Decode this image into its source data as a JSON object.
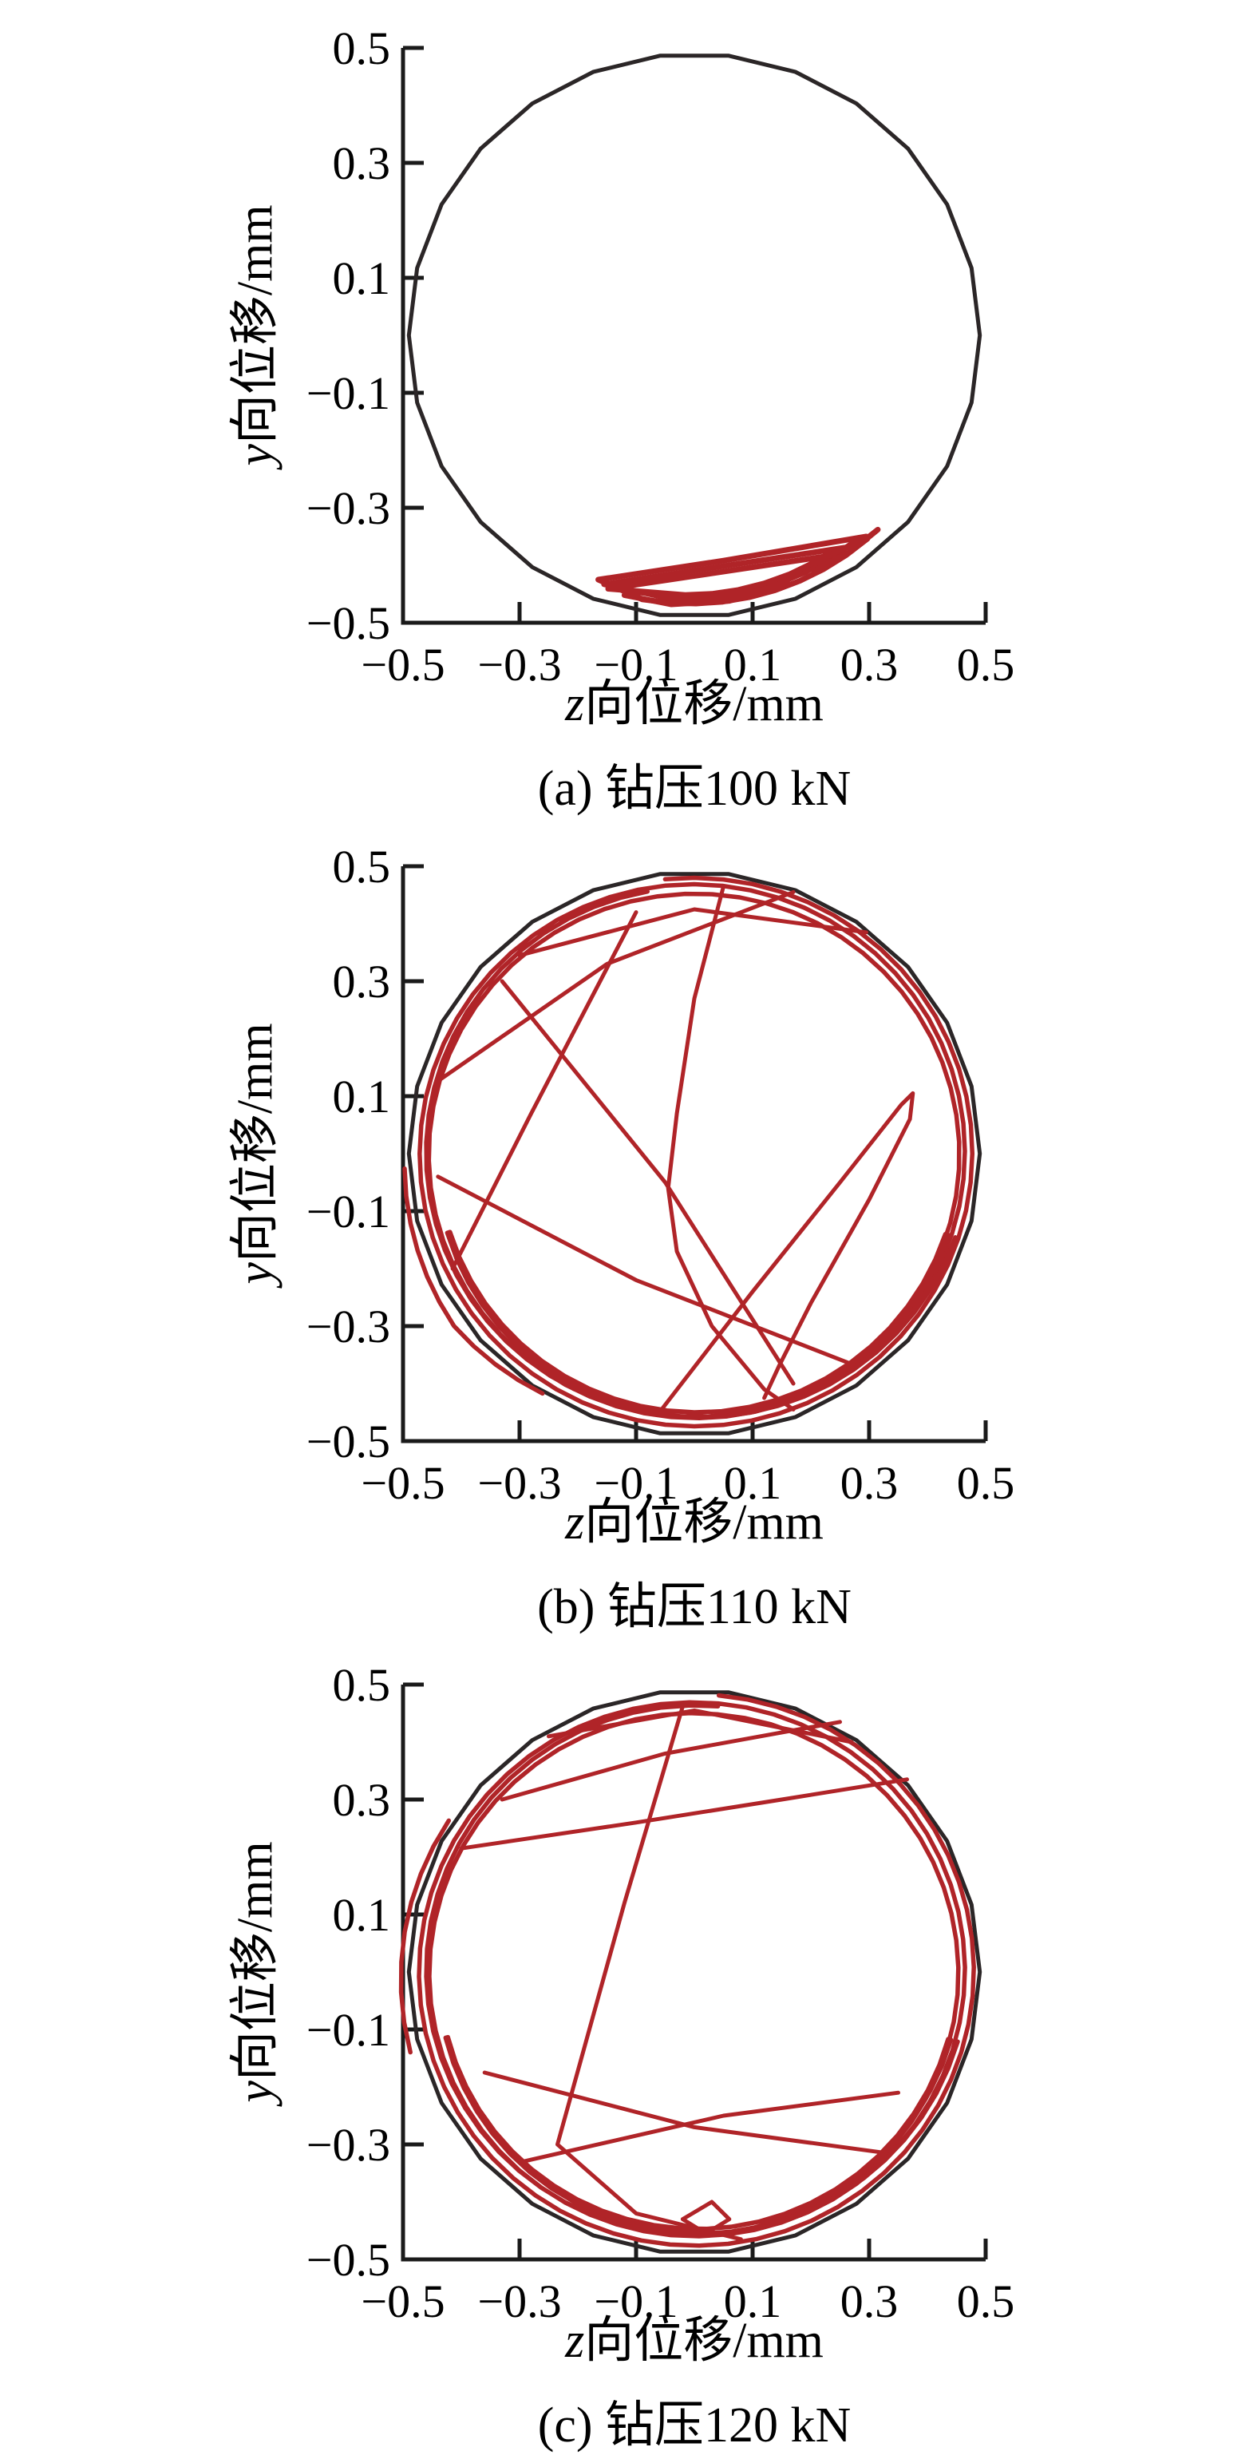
{
  "page": {
    "background": "#ffffff"
  },
  "colors": {
    "trajectory_red": "#b02428",
    "boundary_black": "#2b2627",
    "axis_black": "#1a1a1a",
    "text_black": "#000000"
  },
  "chart_data": [
    {
      "id": "a",
      "type": "line",
      "title": "(a) 钻压100 kN",
      "xlabel_var": "z",
      "xlabel_rest": "向位移/mm",
      "ylabel_var": "y",
      "ylabel_rest": "向位移/mm",
      "xlim": [
        -0.5,
        0.5
      ],
      "ylim": [
        -0.5,
        0.5
      ],
      "grid": false,
      "legend": "none",
      "xticks": {
        "values": [
          -0.5,
          -0.3,
          -0.1,
          0.1,
          0.3,
          0.5
        ],
        "labels": [
          "−0.5",
          "−0.3",
          "−0.1",
          "0.1",
          "0.3",
          "0.5"
        ]
      },
      "yticks": {
        "values": [
          -0.5,
          -0.3,
          -0.1,
          0.1,
          0.3,
          0.5
        ],
        "labels": [
          "−0.5",
          "−0.3",
          "−0.1",
          "0.1",
          "0.3",
          "0.5"
        ]
      },
      "boundary": {
        "shape": "circle",
        "cx": 0,
        "cy": 0,
        "r": 0.49,
        "sides": 26,
        "color": "#2b2627",
        "width": 5
      },
      "series": [
        {
          "name": "whirl-loop-outer",
          "color": "#b02428",
          "width": 7,
          "segments": [
            {
              "pts": [
                [
                  -0.165,
                  -0.425
                ],
                [
                  0.05,
                  -0.392
                ],
                [
                  0.295,
                  -0.35
                ]
              ]
            },
            {
              "arc": [
                -50,
                -101,
                0.462,
                0.468
              ]
            },
            {
              "pts": [
                [
                  -0.165,
                  -0.425
                ]
              ]
            }
          ]
        },
        {
          "name": "whirl-loop-mid",
          "color": "#b02428",
          "width": 7,
          "segments": [
            {
              "pts": [
                [
                  -0.155,
                  -0.433
                ],
                [
                  0.28,
                  -0.366
                ]
              ]
            },
            {
              "arc": [
                -53,
                -96,
                0.452,
                0.459
              ]
            },
            {
              "pts": [
                [
                  -0.155,
                  -0.433
                ]
              ]
            }
          ]
        },
        {
          "name": "whirl-loop-inner",
          "color": "#b02428",
          "width": 7,
          "segments": [
            {
              "pts": [
                [
                  -0.148,
                  -0.441
                ],
                [
                  0.255,
                  -0.38
                ]
              ]
            },
            {
              "arc": [
                -57,
                -92,
                0.444,
                0.452
              ]
            },
            {
              "pts": [
                [
                  -0.148,
                  -0.441
                ]
              ]
            }
          ]
        },
        {
          "name": "bottom-squiggle",
          "color": "#b02428",
          "width": 7,
          "segments": [
            {
              "pts": [
                [
                  -0.1,
                  -0.447
                ],
                [
                  0.02,
                  -0.457
                ],
                [
                  0.1,
                  -0.447
                ],
                [
                  0.16,
                  -0.432
                ],
                [
                  0.06,
                  -0.462
                ],
                [
                  -0.04,
                  -0.468
                ],
                [
                  -0.12,
                  -0.452
                ],
                [
                  -0.1,
                  -0.447
                ]
              ]
            }
          ]
        },
        {
          "name": "right-tip",
          "color": "#b02428",
          "width": 7,
          "segments": [
            {
              "pts": [
                [
                  0.2,
                  -0.398
                ],
                [
                  0.3,
                  -0.35
                ],
                [
                  0.315,
                  -0.338
                ],
                [
                  0.27,
                  -0.375
                ],
                [
                  0.205,
                  -0.41
                ]
              ]
            }
          ]
        }
      ]
    },
    {
      "id": "b",
      "type": "line",
      "title": "(b) 钻压110 kN",
      "xlabel_var": "z",
      "xlabel_rest": "向位移/mm",
      "ylabel_var": "y",
      "ylabel_rest": "向位移/mm",
      "xlim": [
        -0.5,
        0.5
      ],
      "ylim": [
        -0.5,
        0.5
      ],
      "grid": false,
      "legend": "none",
      "xticks": {
        "values": [
          -0.5,
          -0.3,
          -0.1,
          0.1,
          0.3,
          0.5
        ],
        "labels": [
          "−0.5",
          "−0.3",
          "−0.1",
          "0.1",
          "0.3",
          "0.5"
        ]
      },
      "yticks": {
        "values": [
          -0.5,
          -0.3,
          -0.1,
          0.1,
          0.3,
          0.5
        ],
        "labels": [
          "−0.5",
          "−0.3",
          "−0.1",
          "0.1",
          "0.3",
          "0.5"
        ]
      },
      "boundary": {
        "shape": "circle",
        "cx": 0,
        "cy": 0,
        "r": 0.49,
        "sides": 26,
        "color": "#2b2627",
        "width": 5
      },
      "series": [
        {
          "name": "whirl-orbit",
          "color": "#b02428",
          "width": 5.5,
          "segments": [
            {
              "arc": [
                96,
                -264,
                0.48,
                0.469
              ]
            },
            {
              "arc": [
                -264,
                -622,
                0.469,
                0.452
              ]
            },
            {
              "arc": [
                -622,
                -980,
                0.452,
                0.463
              ]
            }
          ]
        },
        {
          "name": "bottom-bundle",
          "color": "#b02428",
          "width": 5.5,
          "segments": [
            {
              "arc": [
                -18,
                -162,
                0.471,
                0.446
              ]
            },
            {
              "arc": [
                -162,
                -18,
                0.441,
                0.459
              ]
            },
            {
              "arc": [
                -18,
                -150,
                0.453,
                0.448
              ]
            }
          ]
        },
        {
          "name": "left-bulge",
          "color": "#b02428",
          "width": 5.5,
          "segments": [
            {
              "arc": [
                183,
                216,
                0.498,
                0.51
              ]
            },
            {
              "arc": [
                216,
                238,
                0.51,
                0.492
              ]
            }
          ]
        },
        {
          "name": "chord-center",
          "color": "#b02428",
          "width": 5,
          "segments": [
            {
              "pts": [
                [
                  0.05,
                  0.465
                ],
                [
                  0.0,
                  0.27
                ],
                [
                  -0.03,
                  0.07
                ],
                [
                  -0.045,
                  -0.06
                ],
                [
                  -0.03,
                  -0.17
                ],
                [
                  0.03,
                  -0.3
                ],
                [
                  0.12,
                  -0.41
                ],
                [
                  0.17,
                  -0.445
                ]
              ]
            }
          ]
        },
        {
          "name": "hairpin",
          "color": "#b02428",
          "width": 5,
          "segments": [
            {
              "pts": [
                [
                  -0.06,
                  -0.45
                ],
                [
                  0.1,
                  -0.24
                ],
                [
                  0.25,
                  -0.05
                ],
                [
                  0.355,
                  0.085
                ],
                [
                  0.375,
                  0.105
                ],
                [
                  0.37,
                  0.06
                ],
                [
                  0.3,
                  -0.08
                ],
                [
                  0.2,
                  -0.26
                ],
                [
                  0.145,
                  -0.37
                ],
                [
                  0.12,
                  -0.425
                ]
              ]
            }
          ]
        },
        {
          "name": "chord-upper-left",
          "color": "#b02428",
          "width": 5,
          "segments": [
            {
              "pts": [
                [
                  -0.435,
                  0.13
                ],
                [
                  -0.15,
                  0.33
                ],
                [
                  0.17,
                  0.455
                ]
              ]
            }
          ]
        },
        {
          "name": "chord-left-up",
          "color": "#b02428",
          "width": 5,
          "segments": [
            {
              "pts": [
                [
                  -0.415,
                  -0.2
                ],
                [
                  -0.28,
                  0.07
                ],
                [
                  -0.1,
                  0.42
                ]
              ]
            }
          ]
        },
        {
          "name": "chord-left-down",
          "color": "#b02428",
          "width": 5,
          "segments": [
            {
              "pts": [
                [
                  -0.44,
                  -0.04
                ],
                [
                  -0.1,
                  -0.22
                ],
                [
                  0.28,
                  -0.37
                ]
              ]
            }
          ]
        },
        {
          "name": "chord-top",
          "color": "#b02428",
          "width": 5,
          "segments": [
            {
              "pts": [
                [
                  -0.3,
                  0.345
                ],
                [
                  0.0,
                  0.425
                ],
                [
                  0.295,
                  0.385
                ]
              ]
            }
          ]
        },
        {
          "name": "chord-diagonal",
          "color": "#b02428",
          "width": 5,
          "segments": [
            {
              "pts": [
                [
                  -0.33,
                  0.3
                ],
                [
                  -0.05,
                  -0.05
                ],
                [
                  0.17,
                  -0.4
                ]
              ]
            }
          ]
        }
      ]
    },
    {
      "id": "c",
      "type": "line",
      "title": "(c) 钻压120 kN",
      "xlabel_var": "z",
      "xlabel_rest": "向位移/mm",
      "ylabel_var": "y",
      "ylabel_rest": "向位移/mm",
      "xlim": [
        -0.5,
        0.5
      ],
      "ylim": [
        -0.5,
        0.5
      ],
      "grid": false,
      "legend": "none",
      "xticks": {
        "values": [
          -0.5,
          -0.3,
          -0.1,
          0.1,
          0.3,
          0.5
        ],
        "labels": [
          "−0.5",
          "−0.3",
          "−0.1",
          "0.1",
          "0.3",
          "0.5"
        ]
      },
      "yticks": {
        "values": [
          -0.5,
          -0.3,
          -0.1,
          0.1,
          0.3,
          0.5
        ],
        "labels": [
          "−0.5",
          "−0.3",
          "−0.1",
          "0.1",
          "0.3",
          "0.5"
        ]
      },
      "boundary": {
        "shape": "circle",
        "cx": 0,
        "cy": 0,
        "r": 0.49,
        "sides": 26,
        "color": "#2b2627",
        "width": 5
      },
      "series": [
        {
          "name": "whirl-orbit",
          "color": "#b02428",
          "width": 5.5,
          "segments": [
            {
              "arc": [
                85,
                -275,
                0.483,
                0.469
              ]
            },
            {
              "arc": [
                -275,
                -635,
                0.469,
                0.45
              ]
            },
            {
              "arc": [
                -635,
                -995,
                0.45,
                0.464
              ]
            }
          ]
        },
        {
          "name": "bottom-bundle",
          "color": "#b02428",
          "width": 5.5,
          "segments": [
            {
              "arc": [
                -15,
                -165,
                0.468,
                0.442
              ]
            },
            {
              "arc": [
                -165,
                -15,
                0.438,
                0.456
              ]
            },
            {
              "arc": [
                -15,
                -100,
                0.451,
                0.447
              ]
            }
          ]
        },
        {
          "name": "left-bulge",
          "color": "#b02428",
          "width": 5.5,
          "segments": [
            {
              "arc": [
                148,
                196,
                0.497,
                0.507
              ]
            }
          ]
        },
        {
          "name": "chord-horizontal",
          "color": "#b02428",
          "width": 5,
          "segments": [
            {
              "pts": [
                [
                  -0.4,
                  0.215
                ],
                [
                  -0.1,
                  0.26
                ],
                [
                  0.15,
                  0.3
                ],
                [
                  0.365,
                  0.335
                ]
              ]
            }
          ]
        },
        {
          "name": "chord-steep",
          "color": "#b02428",
          "width": 5,
          "segments": [
            {
              "pts": [
                [
                  -0.02,
                  0.462
                ],
                [
                  -0.12,
                  0.12
                ],
                [
                  -0.235,
                  -0.3
                ],
                [
                  -0.1,
                  -0.42
                ],
                [
                  0.08,
                  -0.465
                ]
              ]
            }
          ]
        },
        {
          "name": "chord-lower-1",
          "color": "#b02428",
          "width": 5,
          "segments": [
            {
              "pts": [
                [
                  -0.36,
                  -0.175
                ],
                [
                  0.0,
                  -0.27
                ],
                [
                  0.33,
                  -0.315
                ]
              ]
            }
          ]
        },
        {
          "name": "chord-lower-2",
          "color": "#b02428",
          "width": 5,
          "segments": [
            {
              "pts": [
                [
                  -0.295,
                  -0.33
                ],
                [
                  0.05,
                  -0.25
                ],
                [
                  0.35,
                  -0.21
                ]
              ]
            }
          ]
        },
        {
          "name": "chord-top-1",
          "color": "#b02428",
          "width": 5,
          "segments": [
            {
              "pts": [
                [
                  -0.25,
                  0.41
                ],
                [
                  0.0,
                  0.455
                ],
                [
                  0.27,
                  0.4
                ]
              ]
            }
          ]
        },
        {
          "name": "chord-top-2",
          "color": "#b02428",
          "width": 5,
          "segments": [
            {
              "pts": [
                [
                  -0.33,
                  0.3
                ],
                [
                  -0.05,
                  0.38
                ],
                [
                  0.25,
                  0.435
                ]
              ]
            }
          ]
        },
        {
          "name": "small-loop",
          "color": "#b02428",
          "width": 5,
          "segments": [
            {
              "pts": [
                [
                  -0.02,
                  -0.43
                ],
                [
                  0.03,
                  -0.4
                ],
                [
                  0.06,
                  -0.43
                ],
                [
                  0.02,
                  -0.455
                ],
                [
                  -0.02,
                  -0.43
                ]
              ]
            }
          ]
        }
      ]
    }
  ]
}
